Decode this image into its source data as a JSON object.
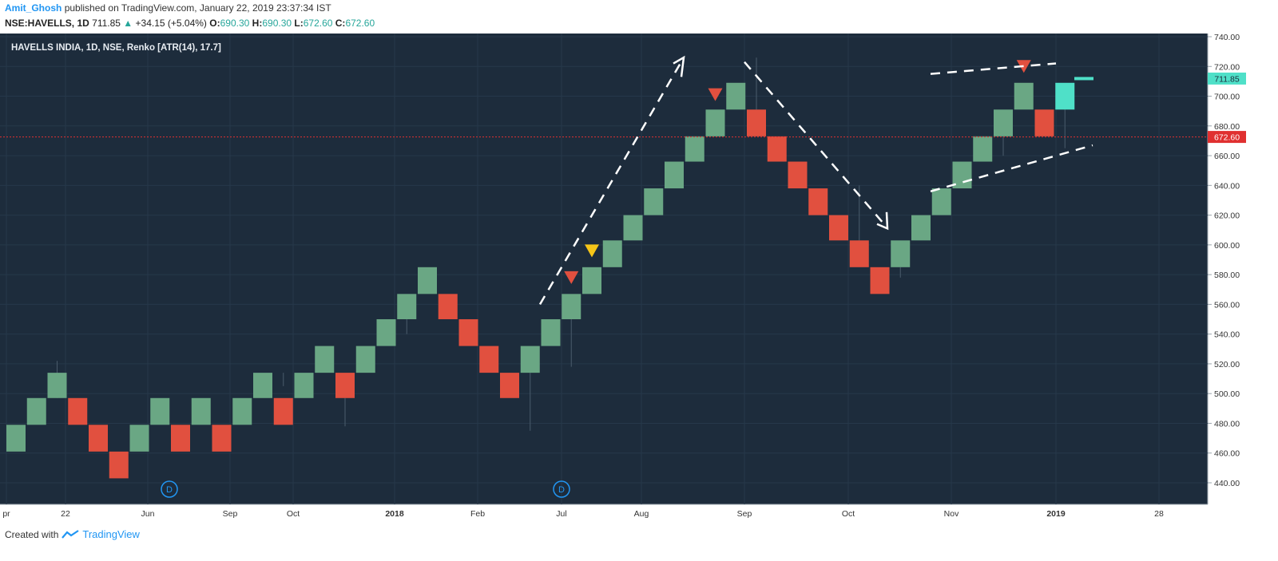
{
  "header": {
    "author": "Amit_Ghosh",
    "published_text": "published on TradingView.com, January 22, 2019 23:37:34 IST",
    "symbol": "NSE:HAVELLS, 1D",
    "last": "711.85",
    "change": "+34.15 (+5.04%)",
    "o_label": "O:",
    "o_val": "690.30",
    "h_label": "H:",
    "h_val": "690.30",
    "l_label": "L:",
    "l_val": "672.60",
    "c_label": "C:",
    "c_val": "672.60"
  },
  "footer": {
    "created_with": "Created with",
    "brand": "TradingView"
  },
  "colors": {
    "background": "#1d2c3c",
    "up": "#6aa784",
    "down": "#e1503f",
    "up_last": "#4fe0c8",
    "grid": "#26384a",
    "price_line": "#e03030",
    "arrow": "#ffffff"
  },
  "chart_data": {
    "type": "renko",
    "title": "HAVELLS INDIA, 1D, NSE, Renko [ATR(14), 17.7]",
    "box_size": 17.7,
    "ylim": [
      425,
      745
    ],
    "y_ticks": [
      "440.00",
      "460.00",
      "480.00",
      "500.00",
      "520.00",
      "540.00",
      "560.00",
      "580.00",
      "600.00",
      "620.00",
      "640.00",
      "660.00",
      "680.00",
      "700.00",
      "720.00",
      "740.00"
    ],
    "x_ticks": [
      "pr",
      "22",
      "Jun",
      "Sep",
      "Oct",
      "2018",
      "Feb",
      "Jul",
      "Aug",
      "Sep",
      "Oct",
      "Nov",
      "2019",
      "28"
    ],
    "bricks": [
      {
        "dir": "up",
        "low": 461,
        "high": 479
      },
      {
        "dir": "up",
        "low": 479,
        "high": 497
      },
      {
        "dir": "up",
        "low": 497,
        "high": 514
      },
      {
        "dir": "down",
        "low": 479,
        "high": 497
      },
      {
        "dir": "down",
        "low": 461,
        "high": 479
      },
      {
        "dir": "down",
        "low": 443,
        "high": 461
      },
      {
        "dir": "up",
        "low": 461,
        "high": 479
      },
      {
        "dir": "up",
        "low": 479,
        "high": 497
      },
      {
        "dir": "down",
        "low": 461,
        "high": 479
      },
      {
        "dir": "up",
        "low": 479,
        "high": 497
      },
      {
        "dir": "down",
        "low": 461,
        "high": 479
      },
      {
        "dir": "up",
        "low": 479,
        "high": 497
      },
      {
        "dir": "up",
        "low": 497,
        "high": 514
      },
      {
        "dir": "down",
        "low": 479,
        "high": 497
      },
      {
        "dir": "up",
        "low": 497,
        "high": 514
      },
      {
        "dir": "up",
        "low": 514,
        "high": 532
      },
      {
        "dir": "down",
        "low": 497,
        "high": 514
      },
      {
        "dir": "up",
        "low": 514,
        "high": 532
      },
      {
        "dir": "up",
        "low": 532,
        "high": 550
      },
      {
        "dir": "up",
        "low": 550,
        "high": 567
      },
      {
        "dir": "up",
        "low": 567,
        "high": 585
      },
      {
        "dir": "down",
        "low": 550,
        "high": 567
      },
      {
        "dir": "down",
        "low": 532,
        "high": 550
      },
      {
        "dir": "down",
        "low": 514,
        "high": 532
      },
      {
        "dir": "down",
        "low": 497,
        "high": 514
      },
      {
        "dir": "up",
        "low": 514,
        "high": 532
      },
      {
        "dir": "up",
        "low": 532,
        "high": 550
      },
      {
        "dir": "up",
        "low": 550,
        "high": 567
      },
      {
        "dir": "up",
        "low": 567,
        "high": 585
      },
      {
        "dir": "up",
        "low": 585,
        "high": 603
      },
      {
        "dir": "up",
        "low": 603,
        "high": 620
      },
      {
        "dir": "up",
        "low": 620,
        "high": 638
      },
      {
        "dir": "up",
        "low": 638,
        "high": 656
      },
      {
        "dir": "up",
        "low": 656,
        "high": 673
      },
      {
        "dir": "up",
        "low": 673,
        "high": 691
      },
      {
        "dir": "up",
        "low": 691,
        "high": 709
      },
      {
        "dir": "down",
        "low": 673,
        "high": 691
      },
      {
        "dir": "down",
        "low": 656,
        "high": 673
      },
      {
        "dir": "down",
        "low": 638,
        "high": 656
      },
      {
        "dir": "down",
        "low": 620,
        "high": 638
      },
      {
        "dir": "down",
        "low": 603,
        "high": 620
      },
      {
        "dir": "down",
        "low": 585,
        "high": 603
      },
      {
        "dir": "down",
        "low": 567,
        "high": 585
      },
      {
        "dir": "up",
        "low": 585,
        "high": 603
      },
      {
        "dir": "up",
        "low": 603,
        "high": 620
      },
      {
        "dir": "up",
        "low": 620,
        "high": 638
      },
      {
        "dir": "up",
        "low": 638,
        "high": 656
      },
      {
        "dir": "up",
        "low": 656,
        "high": 673
      },
      {
        "dir": "up",
        "low": 673,
        "high": 691
      },
      {
        "dir": "up",
        "low": 691,
        "high": 709
      },
      {
        "dir": "down",
        "low": 673,
        "high": 691
      },
      {
        "dir": "up_last",
        "low": 691,
        "high": 709
      }
    ],
    "last_price": {
      "value": 711.85,
      "label": "711.85"
    },
    "close_price": {
      "value": 672.6,
      "label": "672.60"
    },
    "markers": [
      {
        "kind": "red_down",
        "at_brick": 27,
        "price": 578
      },
      {
        "kind": "yellow_down",
        "at_brick": 28,
        "price": 596
      },
      {
        "kind": "red_down",
        "at_brick": 34,
        "price": 701
      },
      {
        "kind": "red_down",
        "at_brick": 49,
        "price": 720
      }
    ],
    "dividend_labels": [
      "D",
      "D"
    ]
  }
}
